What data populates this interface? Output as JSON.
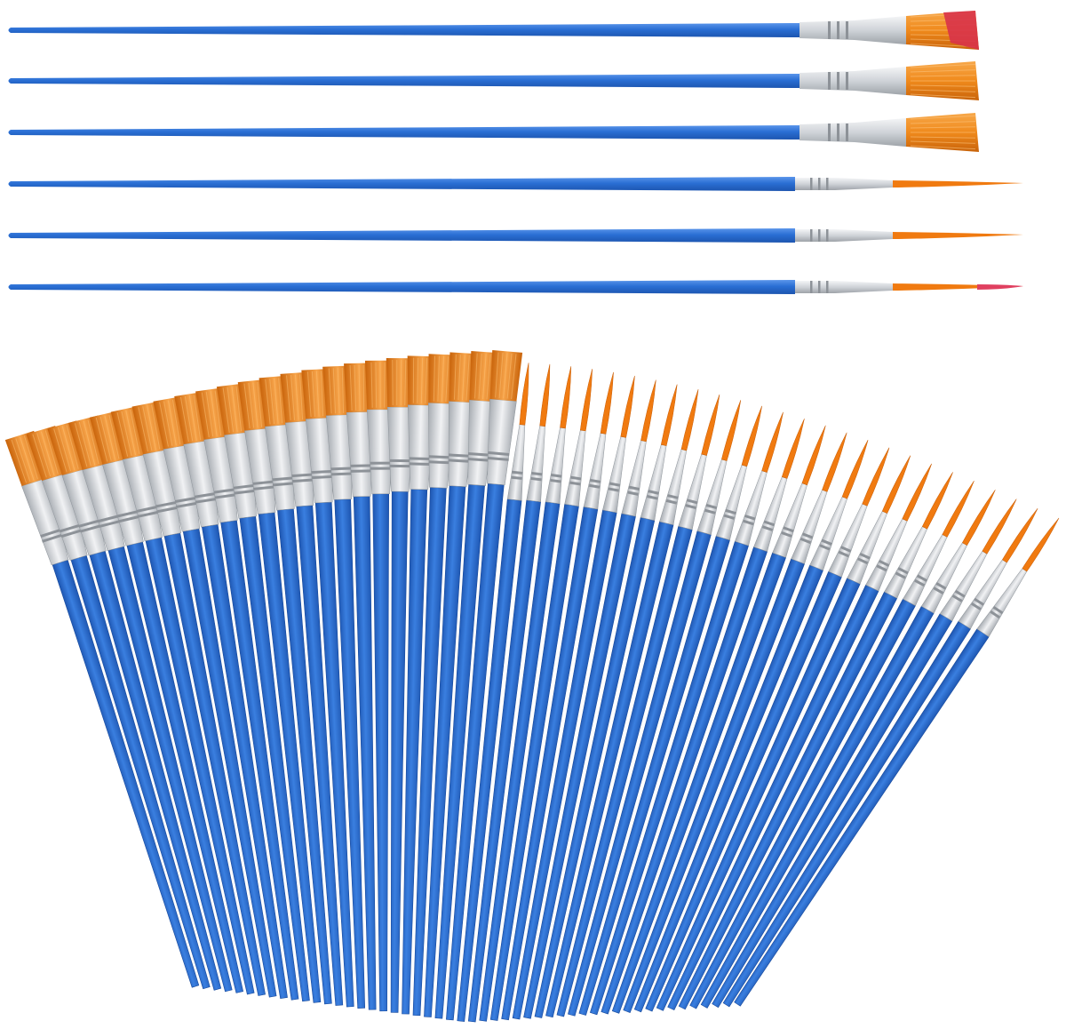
{
  "product": {
    "description_icon": "paint-brush-set",
    "top_row": {
      "brushes": [
        {
          "tip": "flat",
          "bristle_color": "#f08a1c",
          "accent_color": "#d8324a"
        },
        {
          "tip": "flat",
          "bristle_color": "#f08a1c",
          "accent_color": ""
        },
        {
          "tip": "flat",
          "bristle_color": "#f08a1c",
          "accent_color": ""
        },
        {
          "tip": "round",
          "bristle_color": "#f07a10",
          "accent_color": ""
        },
        {
          "tip": "round",
          "bristle_color": "#f07a10",
          "accent_color": ""
        },
        {
          "tip": "round",
          "bristle_color": "#f07a10",
          "accent_color": "#e04060"
        }
      ]
    },
    "fan": {
      "flat_count": 24,
      "round_count": 26
    },
    "colors": {
      "handle": "#2a6fd4",
      "handle_dark": "#1d55b0",
      "handle_light": "#5a95ea",
      "ferrule": "#d6d9dd",
      "ferrule_dark": "#9ea3a9",
      "bristle": "#f08a1c",
      "bristle_dark": "#c8630a",
      "background": "#ffffff"
    }
  }
}
